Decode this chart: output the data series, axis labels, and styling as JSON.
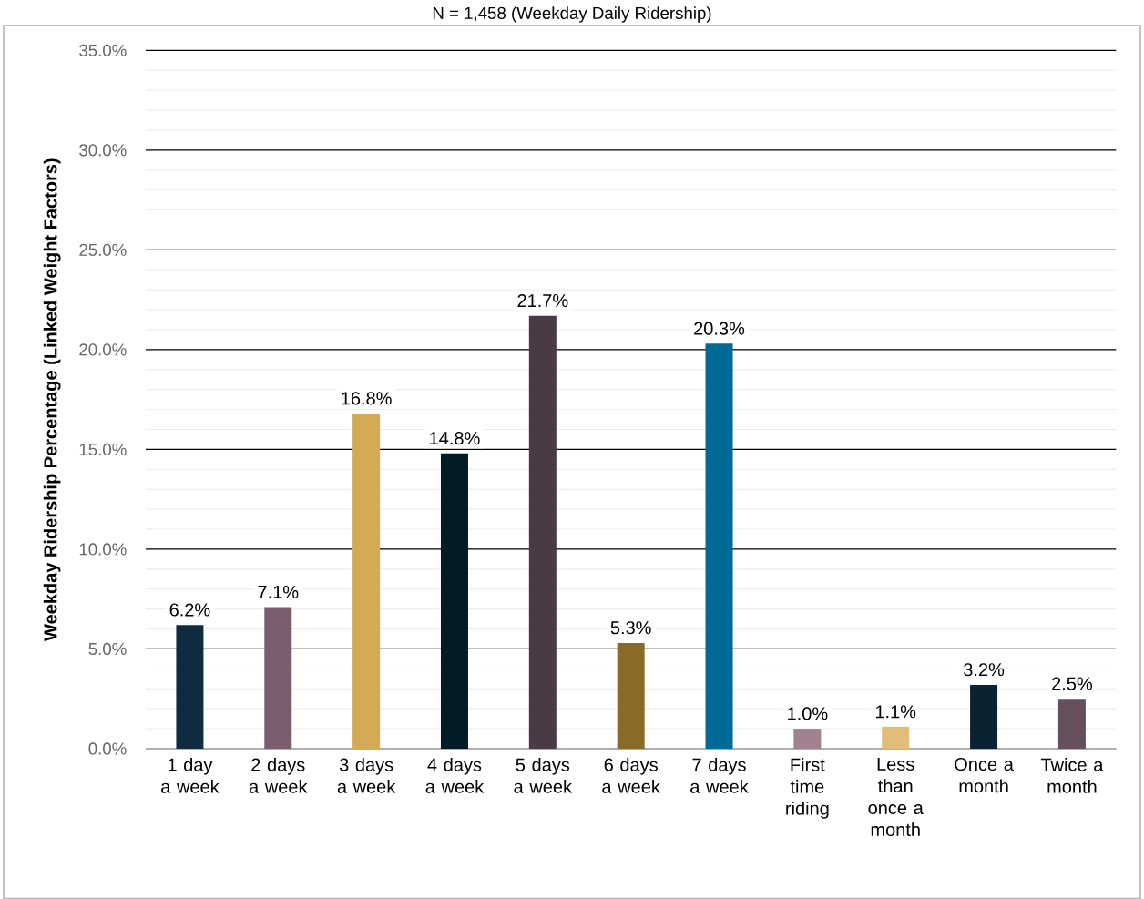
{
  "chart_data": {
    "type": "bar",
    "title": "N = 1,458 (Weekday Daily Ridership)",
    "ylabel": "Weekday Ridership Percentage (Linked Weight Factors)",
    "categories": [
      "1 day a week",
      "2 days a week",
      "3 days a week",
      "4 days a week",
      "5 days a week",
      "6 days a week",
      "7 days a week",
      "First time riding",
      "Less than once a month",
      "Once a month",
      "Twice a month"
    ],
    "values": [
      6.2,
      7.1,
      16.8,
      14.8,
      21.7,
      5.3,
      20.3,
      1.0,
      1.1,
      3.2,
      2.5
    ],
    "value_labels": [
      "6.2%",
      "7.1%",
      "16.8%",
      "14.8%",
      "21.7%",
      "5.3%",
      "20.3%",
      "1.0%",
      "1.1%",
      "3.2%",
      "2.5%"
    ],
    "colors": [
      "#0f2b3f",
      "#7a5e6e",
      "#d4aa55",
      "#021c26",
      "#4a3a45",
      "#8a6a27",
      "#006a96",
      "#a08291",
      "#e0bd78",
      "#0b2233",
      "#654f5d"
    ],
    "ylim": [
      0,
      35
    ],
    "yticks": [
      {
        "value": 0,
        "label": "0.0%"
      },
      {
        "value": 5,
        "label": "5.0%"
      },
      {
        "value": 10,
        "label": "10.0%"
      },
      {
        "value": 15,
        "label": "15.0%"
      },
      {
        "value": 20,
        "label": "20.0%"
      },
      {
        "value": 25,
        "label": "25.0%"
      },
      {
        "value": 30,
        "label": "30.0%"
      },
      {
        "value": 35,
        "label": "35.0%"
      }
    ],
    "grid": "y"
  }
}
